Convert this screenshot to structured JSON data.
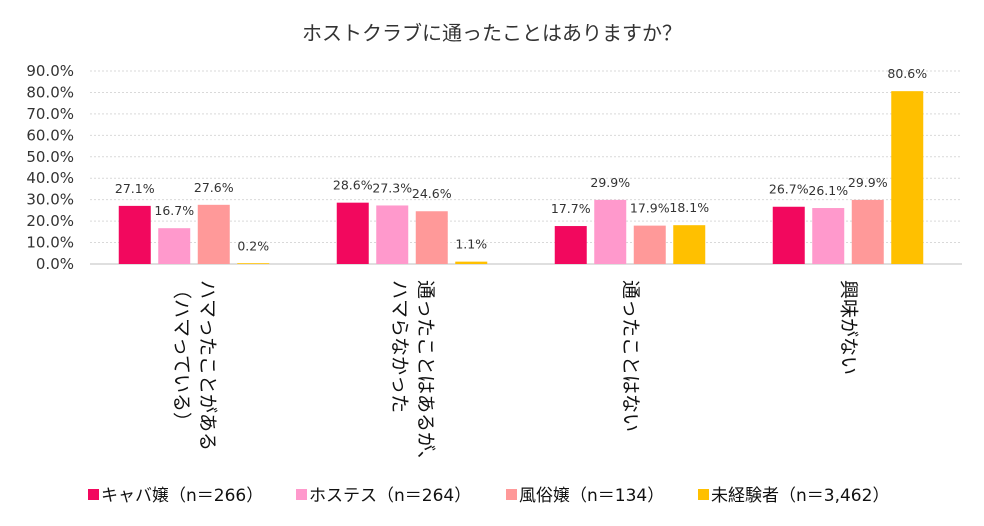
{
  "chart_data": {
    "type": "bar",
    "title": "ホストクラブに通ったことはありますか？",
    "xlabel": "",
    "ylabel": "",
    "ylim": [
      0,
      90
    ],
    "yticks": [
      "0.0%",
      "10.0%",
      "20.0%",
      "30.0%",
      "40.0%",
      "50.0%",
      "60.0%",
      "70.0%",
      "80.0%",
      "90.0%"
    ],
    "categories": [
      {
        "lines": [
          "ハマったことがある",
          "（ハマっている）"
        ]
      },
      {
        "lines": [
          "通ったことはあるが、",
          "ハマらなかった"
        ]
      },
      {
        "lines": [
          "通ったことはない"
        ]
      },
      {
        "lines": [
          "興味がない"
        ]
      }
    ],
    "series": [
      {
        "name": "キャバ嬢（n＝266）",
        "color": "#f2085e",
        "values": [
          27.1,
          28.6,
          17.7,
          26.7
        ],
        "labels": [
          "27.1%",
          "28.6%",
          "17.7%",
          "26.7%"
        ]
      },
      {
        "name": "ホステス（n＝264）",
        "color": "#ff99cc",
        "values": [
          16.7,
          27.3,
          29.9,
          26.1
        ],
        "labels": [
          "16.7%",
          "27.3%",
          "29.9%",
          "26.1%"
        ]
      },
      {
        "name": "風俗嬢（n＝134）",
        "color": "#ff9999",
        "values": [
          27.6,
          24.6,
          17.9,
          29.9
        ],
        "labels": [
          "27.6%",
          "24.6%",
          "17.9%",
          "29.9%"
        ]
      },
      {
        "name": "未経験者（n＝3,462）",
        "color": "#ffc000",
        "values": [
          0.2,
          1.1,
          18.1,
          80.6
        ],
        "labels": [
          "0.2%",
          "1.1%",
          "18.1%",
          "80.6%"
        ]
      }
    ],
    "grid": true,
    "legend_position": "bottom"
  }
}
